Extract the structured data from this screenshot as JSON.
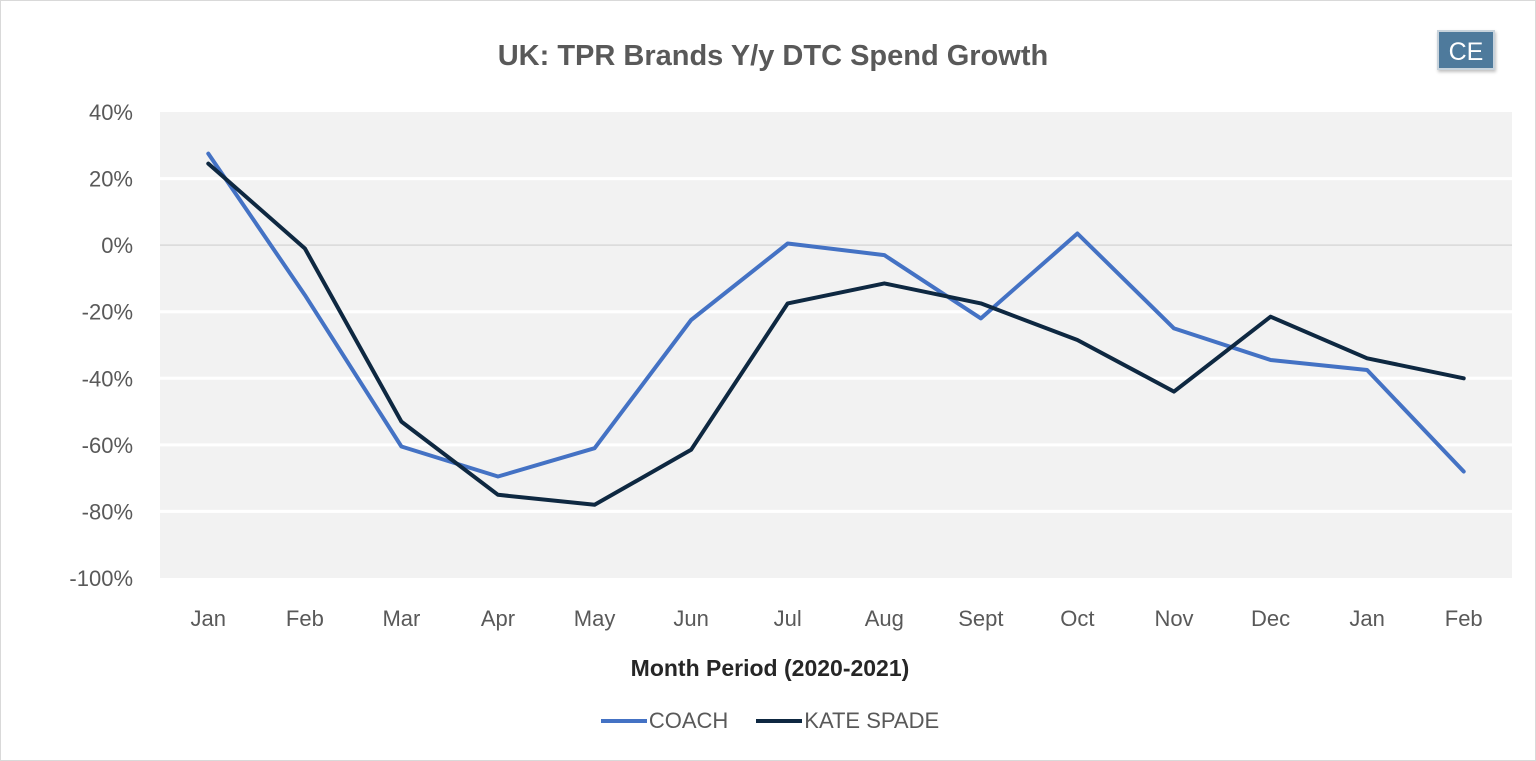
{
  "chart_data": {
    "type": "line",
    "title": "UK: TPR Brands Y/y DTC Spend Growth",
    "xlabel": "Month Period (2020-2021)",
    "ylabel": "",
    "categories": [
      "Jan",
      "Feb",
      "Mar",
      "Apr",
      "May",
      "Jun",
      "Jul",
      "Aug",
      "Sept",
      "Oct",
      "Nov",
      "Dec",
      "Jan",
      "Feb"
    ],
    "ylim": [
      -100,
      40
    ],
    "yticks": [
      "40%",
      "20%",
      "0%",
      "-20%",
      "-40%",
      "-60%",
      "-80%",
      "-100%"
    ],
    "grid": true,
    "legend": "bottom",
    "series": [
      {
        "name": "COACH",
        "color": "#4472c4",
        "values": [
          27.5,
          -15,
          -60.5,
          -69.5,
          -61,
          -22.5,
          0.5,
          -3,
          -22,
          3.5,
          -25,
          -34.5,
          -37.5,
          -68
        ]
      },
      {
        "name": "KATE SPADE",
        "color": "#0e2841",
        "values": [
          24.5,
          -1,
          -53,
          -75,
          -78,
          -61.5,
          -17.5,
          -11.5,
          -17.5,
          -28.5,
          -44,
          -21.5,
          -34,
          -40
        ]
      }
    ]
  },
  "badge": {
    "text": "CE"
  }
}
